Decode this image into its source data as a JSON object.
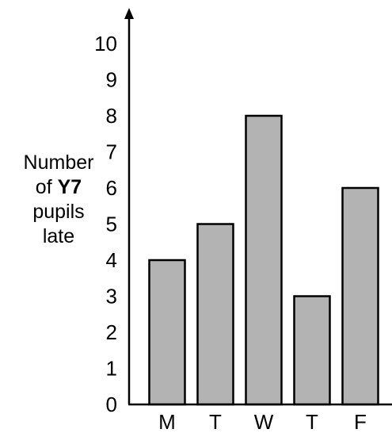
{
  "chart_data": {
    "type": "bar",
    "categories": [
      "M",
      "T",
      "W",
      "T",
      "F"
    ],
    "values": [
      4,
      5,
      8,
      3,
      6
    ],
    "ylabel": {
      "line1": "Number",
      "line2_prefix": "of ",
      "line2_bold": "Y7",
      "line3": "pupils",
      "line4": "late"
    },
    "ylim": [
      0,
      10
    ],
    "yticks": [
      0,
      1,
      2,
      3,
      4,
      5,
      6,
      7,
      8,
      9,
      10
    ],
    "bar_color": "#b3b3b3",
    "grid": false
  }
}
